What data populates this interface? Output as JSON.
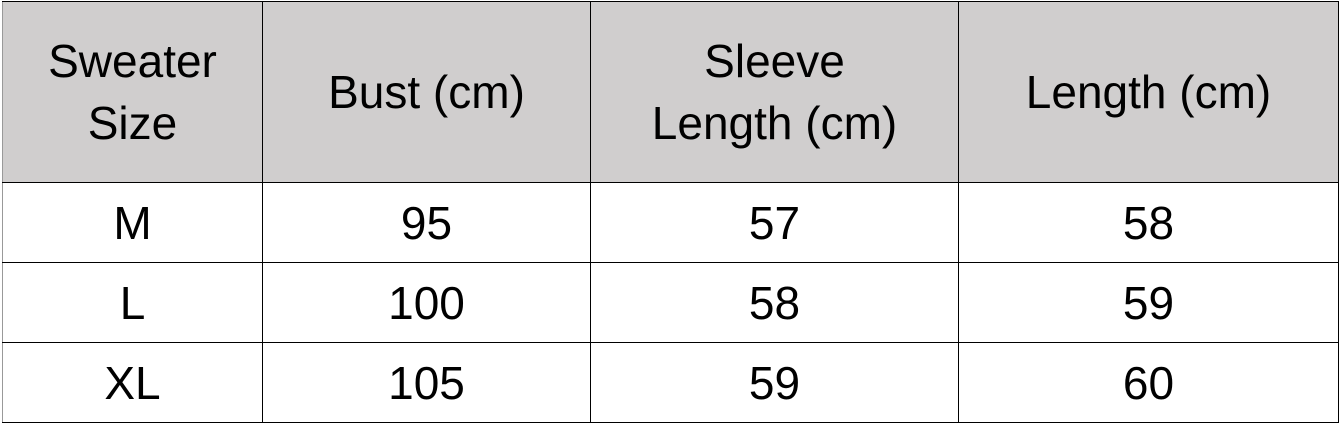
{
  "table": {
    "headers": [
      "Sweater Size",
      "Bust (cm)",
      "Sleeve Length (cm)",
      "Length (cm)"
    ],
    "header_lines": [
      [
        "Sweater",
        "Size"
      ],
      [
        "Bust (cm)"
      ],
      [
        "Sleeve",
        "Length (cm)"
      ],
      [
        "Length (cm)"
      ]
    ],
    "rows": [
      [
        "M",
        "95",
        "57",
        "58"
      ],
      [
        "L",
        "100",
        "58",
        "59"
      ],
      [
        "XL",
        "105",
        "59",
        "60"
      ]
    ]
  },
  "colors": {
    "header_background": "#d0cece",
    "border": "#000000"
  }
}
